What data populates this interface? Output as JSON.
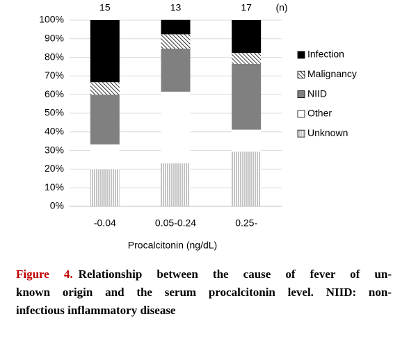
{
  "chart_data": {
    "type": "stacked_bar",
    "categories": [
      "-0.04",
      "0.05-0.24",
      "0.25-"
    ],
    "n": [
      15,
      13,
      17
    ],
    "n_label": "(n)",
    "x_label": "Procalcitonin (ng/dL)",
    "series": [
      {
        "name": "Unknown",
        "color": "#ffffff",
        "pattern": "vertical",
        "values": [
          20.0,
          23.1,
          29.4
        ]
      },
      {
        "name": "Other",
        "color": "#ffffff",
        "values": [
          13.3,
          38.5,
          11.8
        ]
      },
      {
        "name": "NIID",
        "color": "#808080",
        "values": [
          26.7,
          23.1,
          35.3
        ]
      },
      {
        "name": "Malignancy",
        "color": "#ffffff",
        "pattern": "diagonal",
        "values": [
          6.7,
          7.7,
          5.9
        ]
      },
      {
        "name": "Infection",
        "color": "#000000",
        "values": [
          33.3,
          7.7,
          17.6
        ]
      }
    ],
    "ylim": [
      0,
      100
    ],
    "yticks": [
      {
        "value": 0,
        "label": "0%"
      },
      {
        "value": 10,
        "label": "10%"
      },
      {
        "value": 20,
        "label": "20%"
      },
      {
        "value": 30,
        "label": "30%"
      },
      {
        "value": 40,
        "label": "40%"
      },
      {
        "value": 50,
        "label": "50%"
      },
      {
        "value": 60,
        "label": "60%"
      },
      {
        "value": 70,
        "label": "70%"
      },
      {
        "value": 80,
        "label": "80%"
      },
      {
        "value": 90,
        "label": "90%"
      },
      {
        "value": 100,
        "label": "100%"
      }
    ],
    "grid": true,
    "legend": "right"
  },
  "caption": {
    "label": "Figure 4.",
    "lines": [
      "Relationship between the cause of fever of un-",
      "known origin and the serum procalcitonin level. NIID: non-",
      "infectious inflammatory disease"
    ]
  }
}
